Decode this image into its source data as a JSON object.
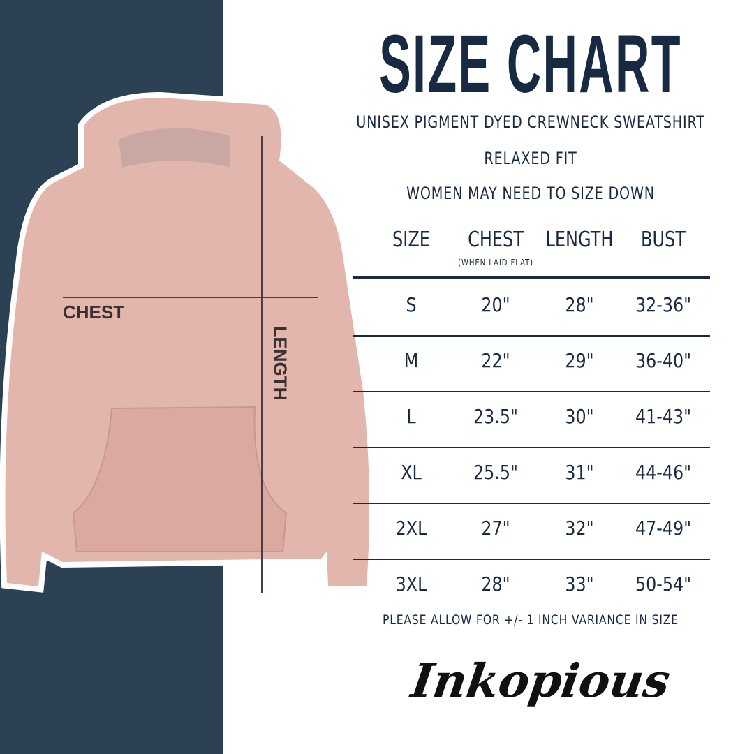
{
  "title": "SIZE CHART",
  "subtitles": [
    "UNISEX PIGMENT DYED CREWNECK SWEATSHIRT",
    "RELAXED FIT",
    "WOMEN MAY NEED TO SIZE DOWN"
  ],
  "image_labels": {
    "chest": "CHEST",
    "length": "LENGTH"
  },
  "table": {
    "headers": [
      "SIZE",
      "CHEST",
      "LENGTH",
      "BUST"
    ],
    "chest_note": "(WHEN LAID FLAT)",
    "rows": [
      [
        "S",
        "20\"",
        "28\"",
        "32-36\""
      ],
      [
        "M",
        "22\"",
        "29\"",
        "36-40\""
      ],
      [
        "L",
        "23.5\"",
        "30\"",
        "41-43\""
      ],
      [
        "XL",
        "25.5\"",
        "31\"",
        "44-46\""
      ],
      [
        "2XL",
        "27\"",
        "32\"",
        "47-49\""
      ],
      [
        "3XL",
        "28\"",
        "33\"",
        "50-54\""
      ]
    ]
  },
  "footnote": "PLEASE ALLOW FOR +/- 1 INCH VARIANCE IN SIZE",
  "brand": "Inkopious",
  "colors": {
    "panel": "#2c4154",
    "text": "#172a42",
    "hoodie": "#e2b5ad"
  }
}
